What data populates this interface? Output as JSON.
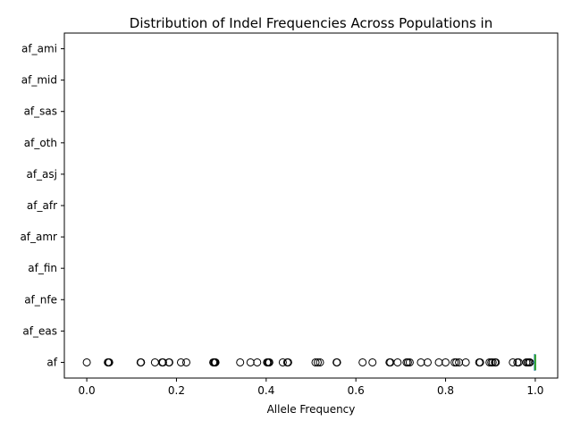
{
  "chart_data": {
    "type": "box",
    "orientation": "horizontal",
    "title": "Distribution of Indel Frequencies Across Populations in",
    "xlabel": "Allele Frequency",
    "ylabel": "",
    "xlim": [
      -0.05,
      1.05
    ],
    "xticks": [
      0.0,
      0.2,
      0.4,
      0.6,
      0.8,
      1.0
    ],
    "xtick_labels": [
      "0.0",
      "0.2",
      "0.4",
      "0.6",
      "0.8",
      "1.0"
    ],
    "categories": [
      "af",
      "af_eas",
      "af_nfe",
      "af_fin",
      "af_amr",
      "af_afr",
      "af_asj",
      "af_oth",
      "af_sas",
      "af_mid",
      "af_ami"
    ],
    "grid": false,
    "box_color": "#1f77b4",
    "median_color": "#2ca02c",
    "series": [
      {
        "category": "af",
        "box": {
          "q1": 0.998,
          "median": 1.0,
          "q3": 1.0,
          "whisker_low": 0.995,
          "whisker_high": 1.0
        },
        "outliers": [
          0.0,
          0.047,
          0.048,
          0.049,
          0.05,
          0.12,
          0.121,
          0.152,
          0.168,
          0.17,
          0.183,
          0.184,
          0.21,
          0.222,
          0.282,
          0.284,
          0.285,
          0.286,
          0.287,
          0.342,
          0.365,
          0.38,
          0.402,
          0.404,
          0.406,
          0.407,
          0.437,
          0.447,
          0.449,
          0.51,
          0.515,
          0.52,
          0.557,
          0.558,
          0.615,
          0.637,
          0.675,
          0.677,
          0.693,
          0.713,
          0.716,
          0.72,
          0.745,
          0.76,
          0.785,
          0.8,
          0.82,
          0.824,
          0.83,
          0.845,
          0.875,
          0.877,
          0.898,
          0.902,
          0.905,
          0.91,
          0.912,
          0.95,
          0.96,
          0.963,
          0.98,
          0.983,
          0.986,
          0.988
        ]
      },
      {
        "category": "af_eas",
        "box": null,
        "outliers": []
      },
      {
        "category": "af_nfe",
        "box": null,
        "outliers": []
      },
      {
        "category": "af_fin",
        "box": null,
        "outliers": []
      },
      {
        "category": "af_amr",
        "box": null,
        "outliers": []
      },
      {
        "category": "af_afr",
        "box": null,
        "outliers": []
      },
      {
        "category": "af_asj",
        "box": null,
        "outliers": []
      },
      {
        "category": "af_oth",
        "box": null,
        "outliers": []
      },
      {
        "category": "af_sas",
        "box": null,
        "outliers": []
      },
      {
        "category": "af_mid",
        "box": null,
        "outliers": []
      },
      {
        "category": "af_ami",
        "box": null,
        "outliers": []
      }
    ]
  }
}
